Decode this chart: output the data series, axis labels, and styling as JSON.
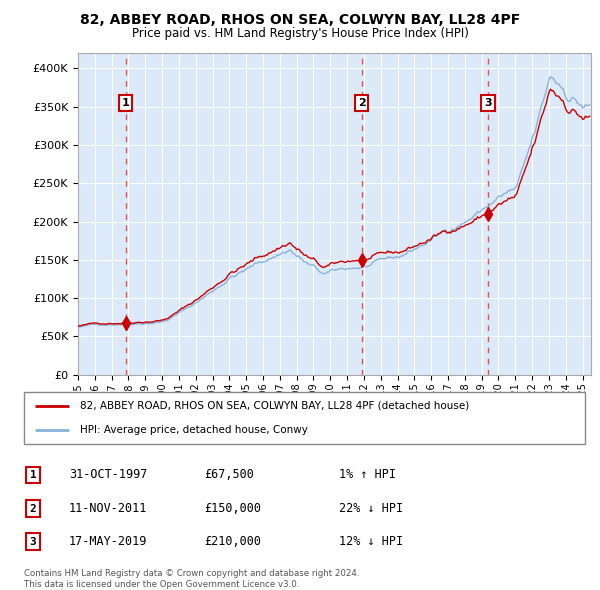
{
  "title": "82, ABBEY ROAD, RHOS ON SEA, COLWYN BAY, LL28 4PF",
  "subtitle": "Price paid vs. HM Land Registry's House Price Index (HPI)",
  "ylim": [
    0,
    420000
  ],
  "xlim_start": 1995.0,
  "xlim_end": 2025.5,
  "yticks": [
    0,
    50000,
    100000,
    150000,
    200000,
    250000,
    300000,
    350000,
    400000
  ],
  "ytick_labels": [
    "£0",
    "£50K",
    "£100K",
    "£150K",
    "£200K",
    "£250K",
    "£300K",
    "£350K",
    "£400K"
  ],
  "xticks": [
    1995,
    1996,
    1997,
    1998,
    1999,
    2000,
    2001,
    2002,
    2003,
    2004,
    2005,
    2006,
    2007,
    2008,
    2009,
    2010,
    2011,
    2012,
    2013,
    2014,
    2015,
    2016,
    2017,
    2018,
    2019,
    2020,
    2021,
    2022,
    2023,
    2024,
    2025
  ],
  "background_color": "#dce9f8",
  "grid_color": "#ffffff",
  "hpi_color": "#89b4d9",
  "price_color": "#cc0000",
  "vline_color": "#ee3333",
  "marker_color": "#cc0000",
  "sale1_date": 1997.833,
  "sale1_price": 67500,
  "sale2_date": 2011.86,
  "sale2_price": 150000,
  "sale3_date": 2019.38,
  "sale3_price": 210000,
  "legend_label_price": "82, ABBEY ROAD, RHOS ON SEA, COLWYN BAY, LL28 4PF (detached house)",
  "legend_label_hpi": "HPI: Average price, detached house, Conwy",
  "table_rows": [
    {
      "num": "1",
      "date": "31-OCT-1997",
      "price": "£67,500",
      "hpi": "1% ↑ HPI"
    },
    {
      "num": "2",
      "date": "11-NOV-2011",
      "price": "£150,000",
      "hpi": "22% ↓ HPI"
    },
    {
      "num": "3",
      "date": "17-MAY-2019",
      "price": "£210,000",
      "hpi": "12% ↓ HPI"
    }
  ],
  "footnote": "Contains HM Land Registry data © Crown copyright and database right 2024.\nThis data is licensed under the Open Government Licence v3.0."
}
